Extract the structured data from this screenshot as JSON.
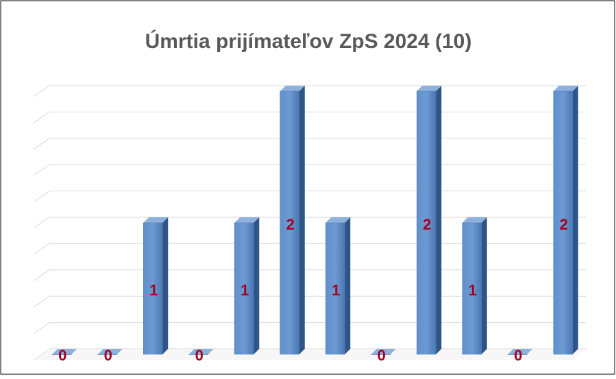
{
  "chart_data": {
    "type": "bar",
    "title": "Úmrtia prijímateľov ZpS 2024 (10)",
    "categories": [
      null,
      null,
      null,
      null,
      null,
      null,
      null,
      null,
      null,
      null,
      null,
      null
    ],
    "values": [
      0,
      0,
      1,
      0,
      1,
      2,
      1,
      0,
      2,
      1,
      0,
      2
    ],
    "color": "#4f81bd",
    "label_color": "#a50021",
    "ylim": [
      0,
      2
    ],
    "yticks": [
      0,
      0.2,
      0.4,
      0.6,
      0.8,
      1,
      1.2,
      1.4,
      1.6,
      1.8,
      2
    ],
    "grid": true
  }
}
